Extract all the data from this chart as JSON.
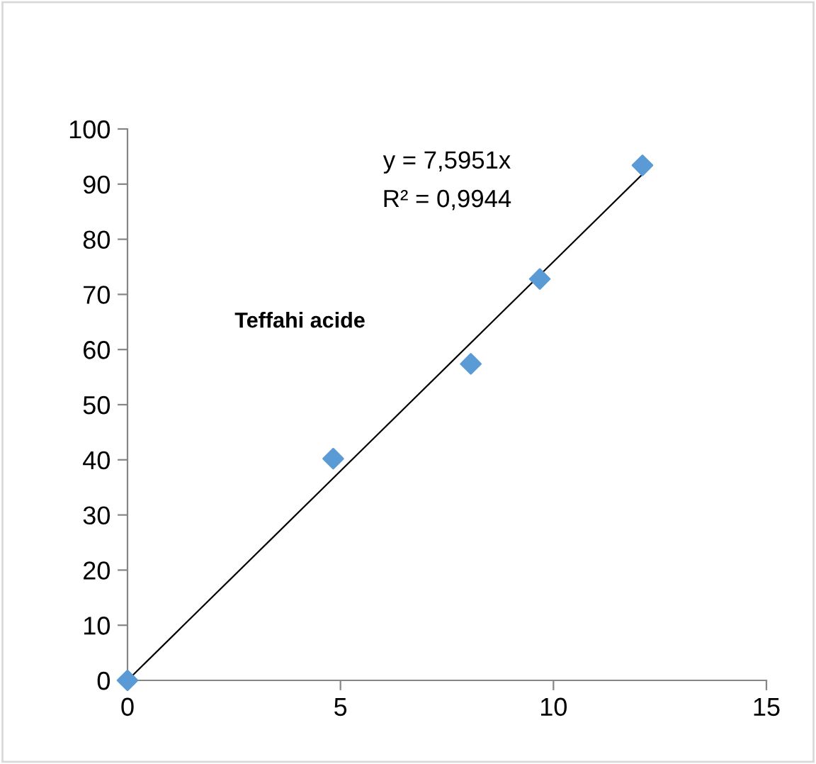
{
  "chart_data": {
    "type": "scatter",
    "grid": false,
    "legend": false,
    "xlim": [
      0,
      15
    ],
    "xticks": [
      0,
      5,
      10,
      15
    ],
    "ylim": [
      0,
      100
    ],
    "yticks": [
      0,
      10,
      20,
      30,
      40,
      50,
      60,
      70,
      80,
      90,
      100
    ],
    "series": [
      {
        "marker": "diamond",
        "color": "#5b9bd5",
        "x": [
          0,
          4.83,
          8.06,
          9.68,
          12.09
        ],
        "values": [
          0,
          40.2,
          57.4,
          72.8,
          93.4
        ]
      },
      {
        "type": "line",
        "marker": "none",
        "color": "#000000",
        "x": [
          0,
          12.09
        ],
        "values": [
          0,
          91.8
        ]
      }
    ],
    "annotations": [
      "y = 7,5951x",
      "R² = 0,9944",
      "Teffahi acide"
    ]
  }
}
